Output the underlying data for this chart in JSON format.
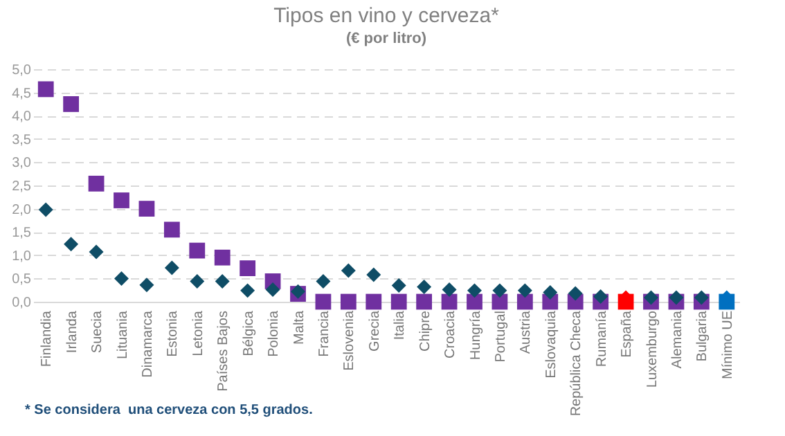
{
  "chart_data": {
    "type": "scatter",
    "title": "Tipos en vino y cerveza*",
    "subtitle": "(€ por litro)",
    "categories": [
      "Finlandia",
      "Irlanda",
      "Suecia",
      "Lituania",
      "Dinamarca",
      "Estonia",
      "Letonia",
      "Países Bajos",
      "Bélgica",
      "Polonia",
      "Malta",
      "Francia",
      "Eslovenia",
      "Grecia",
      "Italia",
      "Chipre",
      "Croacia",
      "Hungría",
      "Portugal",
      "Austria",
      "Eslovaquia",
      "República Checa",
      "Rumanía",
      "España",
      "Luxemburgo",
      "Alemania",
      "Bulgaria",
      "Mínimo UE"
    ],
    "series": [
      {
        "marker": "square",
        "colors": [
          "#7030a0",
          "#7030a0",
          "#7030a0",
          "#7030a0",
          "#7030a0",
          "#7030a0",
          "#7030a0",
          "#7030a0",
          "#7030a0",
          "#7030a0",
          "#7030a0",
          "#7030a0",
          "#7030a0",
          "#7030a0",
          "#7030a0",
          "#7030a0",
          "#7030a0",
          "#7030a0",
          "#7030a0",
          "#7030a0",
          "#7030a0",
          "#7030a0",
          "#7030a0",
          "#ff0000",
          "#7030a0",
          "#7030a0",
          "#7030a0",
          "#0070c0"
        ],
        "values": [
          4.57,
          4.25,
          2.54,
          2.18,
          2.0,
          1.55,
          1.1,
          0.95,
          0.72,
          0.44,
          0.17,
          0,
          0,
          0,
          0,
          0,
          0,
          0,
          0,
          0,
          0,
          0,
          0,
          0,
          0,
          0,
          0,
          0
        ]
      },
      {
        "marker": "diamond",
        "colors": [
          "#0f4d66",
          "#0f4d66",
          "#0f4d66",
          "#0f4d66",
          "#0f4d66",
          "#0f4d66",
          "#0f4d66",
          "#0f4d66",
          "#0f4d66",
          "#0f4d66",
          "#0f4d66",
          "#0f4d66",
          "#0f4d66",
          "#0f4d66",
          "#0f4d66",
          "#0f4d66",
          "#0f4d66",
          "#0f4d66",
          "#0f4d66",
          "#0f4d66",
          "#0f4d66",
          "#0f4d66",
          "#0f4d66",
          "#ff0000",
          "#0f4d66",
          "#0f4d66",
          "#0f4d66",
          "#0070c0"
        ],
        "values": [
          1.98,
          1.24,
          1.07,
          0.5,
          0.36,
          0.73,
          0.44,
          0.44,
          0.24,
          0.26,
          0.22,
          0.44,
          0.67,
          0.58,
          0.35,
          0.32,
          0.26,
          0.24,
          0.24,
          0.24,
          0.2,
          0.18,
          0.11,
          0.09,
          0.09,
          0.09,
          0.09,
          0.09
        ]
      }
    ],
    "ylim": [
      0,
      5
    ],
    "yticks": [
      {
        "value": 0,
        "label": "0,0"
      },
      {
        "value": 0.5,
        "label": "0,5"
      },
      {
        "value": 1,
        "label": "1,0"
      },
      {
        "value": 1.5,
        "label": "1,5"
      },
      {
        "value": 2,
        "label": "2,0"
      },
      {
        "value": 2.5,
        "label": "2,5"
      },
      {
        "value": 3,
        "label": "3,0"
      },
      {
        "value": 3.5,
        "label": "3,5"
      },
      {
        "value": 4,
        "label": "4,0"
      },
      {
        "value": 4.5,
        "label": "4,5"
      },
      {
        "value": 5,
        "label": "5,0"
      }
    ],
    "grid": "y",
    "annotations": [
      "* Se considera  una cerveza con 5,5 grados."
    ]
  }
}
